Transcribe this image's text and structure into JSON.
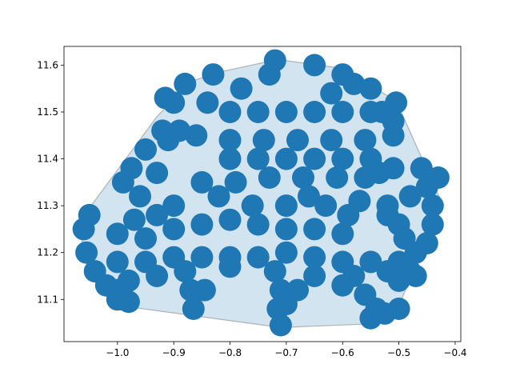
{
  "chart_data": {
    "type": "scatter",
    "title": "",
    "xlabel": "",
    "ylabel": "",
    "xlim": [
      -1.095,
      -0.39
    ],
    "ylim": [
      11.01,
      11.64
    ],
    "grid": false,
    "x_ticks": [
      -1.0,
      -0.9,
      -0.8,
      -0.7,
      -0.6,
      -0.5,
      -0.4
    ],
    "x_tick_labels": [
      "−1.0",
      "−0.9",
      "−0.8",
      "−0.7",
      "−0.6",
      "−0.5",
      "−0.4"
    ],
    "y_ticks": [
      11.1,
      11.2,
      11.3,
      11.4,
      11.5,
      11.6
    ],
    "y_tick_labels": [
      "11.1",
      "11.2",
      "11.3",
      "11.4",
      "11.5",
      "11.6"
    ],
    "colors": {
      "points": "#1f77b4",
      "hull_fill": "#1f77b4",
      "hull_edge": "#808080"
    },
    "hull": [
      [
        -0.715,
        11.612
      ],
      [
        -0.61,
        11.595
      ],
      [
        -0.505,
        11.525
      ],
      [
        -0.455,
        11.39
      ],
      [
        -0.425,
        11.31
      ],
      [
        -0.455,
        11.23
      ],
      [
        -0.475,
        11.16
      ],
      [
        -0.495,
        11.1
      ],
      [
        -0.545,
        11.048
      ],
      [
        -0.71,
        11.04
      ],
      [
        -0.985,
        11.085
      ],
      [
        -1.06,
        11.19
      ],
      [
        -1.065,
        11.25
      ],
      [
        -1.05,
        11.295
      ],
      [
        -0.93,
        11.49
      ],
      [
        -0.87,
        11.565
      ],
      [
        -0.82,
        11.585
      ]
    ],
    "series": [
      {
        "values": [
          [
            -0.72,
            11.61
          ],
          [
            -0.65,
            11.6
          ],
          [
            -0.6,
            11.58
          ],
          [
            -0.55,
            11.55
          ],
          [
            -0.505,
            11.52
          ],
          [
            -0.83,
            11.58
          ],
          [
            -0.88,
            11.56
          ],
          [
            -0.915,
            11.53
          ],
          [
            -0.9,
            11.52
          ],
          [
            -0.84,
            11.52
          ],
          [
            -0.78,
            11.55
          ],
          [
            -0.73,
            11.58
          ],
          [
            -0.8,
            11.5
          ],
          [
            -0.75,
            11.5
          ],
          [
            -0.7,
            11.5
          ],
          [
            -0.65,
            11.5
          ],
          [
            -0.6,
            11.5
          ],
          [
            -0.55,
            11.5
          ],
          [
            -0.92,
            11.46
          ],
          [
            -0.86,
            11.45
          ],
          [
            -0.8,
            11.44
          ],
          [
            -0.74,
            11.44
          ],
          [
            -0.68,
            11.44
          ],
          [
            -0.62,
            11.44
          ],
          [
            -0.56,
            11.44
          ],
          [
            -0.51,
            11.45
          ],
          [
            -0.8,
            11.4
          ],
          [
            -0.75,
            11.4
          ],
          [
            -0.7,
            11.4
          ],
          [
            -0.65,
            11.4
          ],
          [
            -0.6,
            11.4
          ],
          [
            -0.55,
            11.4
          ],
          [
            -0.79,
            11.35
          ],
          [
            -0.73,
            11.36
          ],
          [
            -0.67,
            11.36
          ],
          [
            -0.61,
            11.36
          ],
          [
            -0.56,
            11.36
          ],
          [
            -0.95,
            11.42
          ],
          [
            -0.975,
            11.38
          ],
          [
            -0.99,
            11.35
          ],
          [
            -0.96,
            11.32
          ],
          [
            -0.93,
            11.37
          ],
          [
            -0.91,
            11.44
          ],
          [
            -0.89,
            11.46
          ],
          [
            -1.05,
            11.28
          ],
          [
            -1.06,
            11.25
          ],
          [
            -1.055,
            11.2
          ],
          [
            -1.04,
            11.16
          ],
          [
            -1.02,
            11.13
          ],
          [
            -1.0,
            11.1
          ],
          [
            -0.98,
            11.095
          ],
          [
            -1.0,
            11.24
          ],
          [
            -0.95,
            11.23
          ],
          [
            -0.9,
            11.25
          ],
          [
            -0.85,
            11.26
          ],
          [
            -0.8,
            11.27
          ],
          [
            -0.75,
            11.26
          ],
          [
            -0.7,
            11.25
          ],
          [
            -0.65,
            11.25
          ],
          [
            -0.6,
            11.24
          ],
          [
            -1.0,
            11.18
          ],
          [
            -0.95,
            11.18
          ],
          [
            -0.9,
            11.19
          ],
          [
            -0.85,
            11.19
          ],
          [
            -0.8,
            11.19
          ],
          [
            -0.75,
            11.19
          ],
          [
            -0.7,
            11.2
          ],
          [
            -0.65,
            11.19
          ],
          [
            -0.6,
            11.18
          ],
          [
            -0.55,
            11.18
          ],
          [
            -0.5,
            11.18
          ],
          [
            -0.98,
            11.14
          ],
          [
            -0.93,
            11.15
          ],
          [
            -0.88,
            11.16
          ],
          [
            -0.8,
            11.17
          ],
          [
            -0.72,
            11.16
          ],
          [
            -0.65,
            11.15
          ],
          [
            -0.58,
            11.15
          ],
          [
            -0.52,
            11.16
          ],
          [
            -0.48,
            11.16
          ],
          [
            -1.0,
            11.12
          ],
          [
            -0.99,
            11.1
          ],
          [
            -0.87,
            11.12
          ],
          [
            -0.865,
            11.08
          ],
          [
            -0.845,
            11.12
          ],
          [
            -0.71,
            11.12
          ],
          [
            -0.715,
            11.08
          ],
          [
            -0.71,
            11.045
          ],
          [
            -0.7,
            11.09
          ],
          [
            -0.68,
            11.12
          ],
          [
            -0.6,
            11.13
          ],
          [
            -0.56,
            11.11
          ],
          [
            -0.54,
            11.08
          ],
          [
            -0.5,
            11.14
          ],
          [
            -0.47,
            11.15
          ],
          [
            -0.52,
            11.3
          ],
          [
            -0.48,
            11.32
          ],
          [
            -0.45,
            11.34
          ],
          [
            -0.44,
            11.3
          ],
          [
            -0.44,
            11.26
          ],
          [
            -0.45,
            11.22
          ],
          [
            -0.47,
            11.2
          ],
          [
            -0.46,
            11.38
          ],
          [
            -0.43,
            11.36
          ],
          [
            -0.5,
            11.26
          ],
          [
            -0.52,
            11.28
          ],
          [
            -0.49,
            11.23
          ],
          [
            -0.59,
            11.28
          ],
          [
            -0.57,
            11.31
          ],
          [
            -0.63,
            11.3
          ],
          [
            -0.66,
            11.32
          ],
          [
            -0.7,
            11.3
          ],
          [
            -0.76,
            11.3
          ],
          [
            -0.82,
            11.32
          ],
          [
            -0.85,
            11.35
          ],
          [
            -0.9,
            11.3
          ],
          [
            -0.93,
            11.28
          ],
          [
            -0.97,
            11.27
          ],
          [
            -0.62,
            11.54
          ],
          [
            -0.58,
            11.56
          ],
          [
            -0.53,
            11.5
          ],
          [
            -0.51,
            11.48
          ],
          [
            -0.55,
            11.06
          ],
          [
            -0.525,
            11.07
          ],
          [
            -0.5,
            11.08
          ],
          [
            -0.51,
            11.38
          ],
          [
            -0.535,
            11.37
          ]
        ]
      }
    ]
  }
}
